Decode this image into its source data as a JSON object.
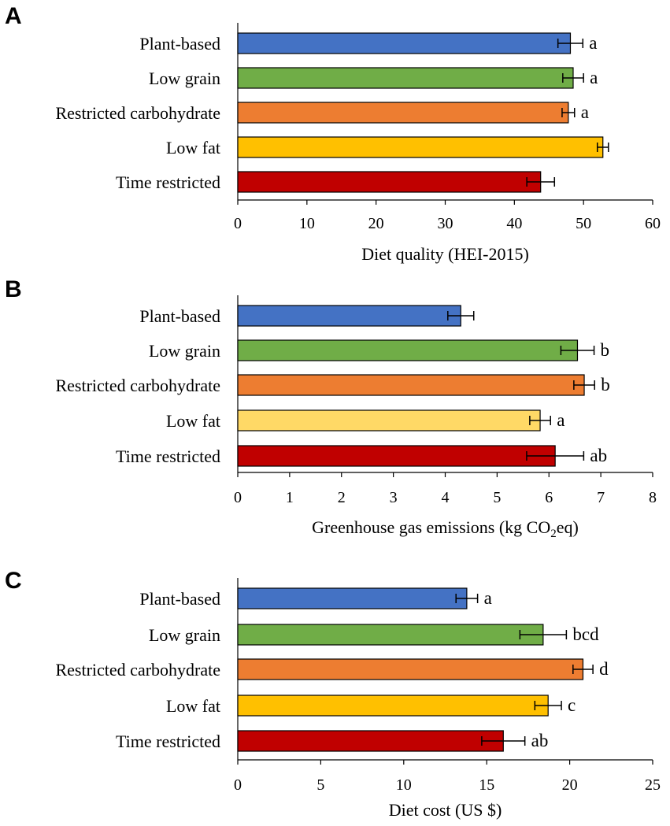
{
  "figure_letters": [
    "A",
    "B",
    "C"
  ],
  "chart_data": [
    {
      "type": "bar",
      "orientation": "horizontal",
      "panel": "A",
      "categories": [
        "Plant-based",
        "Low grain",
        "Restricted carbohydrate",
        "Low fat",
        "Time restricted"
      ],
      "values": [
        48.1,
        48.5,
        47.8,
        52.8,
        43.8
      ],
      "error": [
        1.8,
        1.5,
        0.9,
        0.8,
        2.0
      ],
      "significance": [
        "a",
        "a",
        "a",
        "",
        ""
      ],
      "colors": [
        "#4472C4",
        "#70AD47",
        "#ED7D31",
        "#FFC000",
        "#C00000"
      ],
      "xlabel": "Diet quality (HEI-2015)",
      "xlabel_sub": "",
      "xlabel_tail": "",
      "xlim": [
        0,
        60
      ],
      "ticks": [
        "0",
        "10",
        "20",
        "30",
        "40",
        "50",
        "60"
      ],
      "grid": false
    },
    {
      "type": "bar",
      "orientation": "horizontal",
      "panel": "B",
      "categories": [
        "Plant-based",
        "Low grain",
        "Restricted carbohydrate",
        "Low fat",
        "Time restricted"
      ],
      "values": [
        4.3,
        6.55,
        6.68,
        5.83,
        6.12
      ],
      "error": [
        0.25,
        0.32,
        0.2,
        0.2,
        0.55
      ],
      "significance": [
        "",
        "b",
        "b",
        "a",
        "ab"
      ],
      "colors": [
        "#4472C4",
        "#70AD47",
        "#ED7D31",
        "#FFD966",
        "#C00000"
      ],
      "xlabel": "Greenhouse gas emissions (kg CO",
      "xlabel_sub": "2",
      "xlabel_tail": "eq)",
      "xlim": [
        0,
        8
      ],
      "ticks": [
        "0",
        "1",
        "2",
        "3",
        "4",
        "5",
        "6",
        "7",
        "8"
      ],
      "grid": false
    },
    {
      "type": "bar",
      "orientation": "horizontal",
      "panel": "C",
      "categories": [
        "Plant-based",
        "Low grain",
        "Restricted carbohydrate",
        "Low fat",
        "Time restricted"
      ],
      "values": [
        13.8,
        18.4,
        20.8,
        18.7,
        16.0
      ],
      "error": [
        0.65,
        1.4,
        0.6,
        0.8,
        1.3
      ],
      "significance": [
        "a",
        "bcd",
        "d",
        "c",
        "ab"
      ],
      "colors": [
        "#4472C4",
        "#70AD47",
        "#ED7D31",
        "#FFC000",
        "#C00000"
      ],
      "xlabel": "Diet cost (US $)",
      "xlabel_sub": "",
      "xlabel_tail": "",
      "xlim": [
        0,
        25
      ],
      "ticks": [
        "0",
        "5",
        "10",
        "15",
        "20",
        "25"
      ],
      "grid": false
    }
  ]
}
